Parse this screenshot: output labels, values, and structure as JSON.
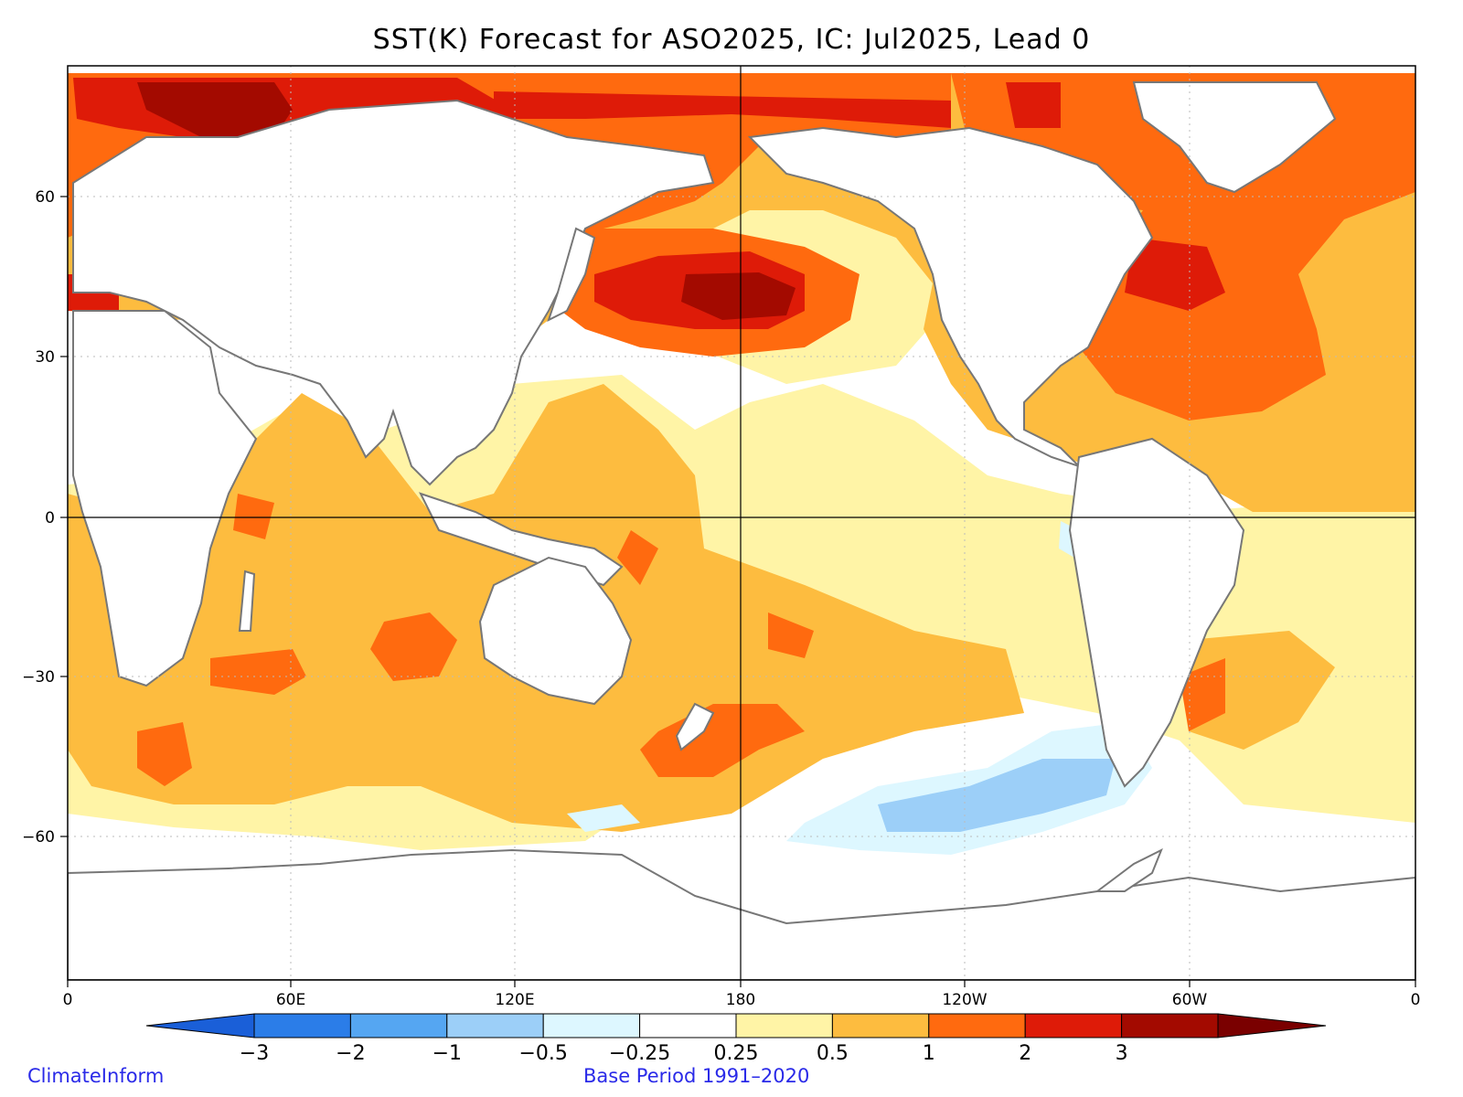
{
  "title": "SST(K) Forecast for ASO2025, IC: Jul2025, Lead 0",
  "credit": "ClimateInform",
  "base_period": "Base Period 1991–2020",
  "map": {
    "x_ticks": [
      "0",
      "60E",
      "120E",
      "180",
      "120W",
      "60W",
      "0"
    ],
    "y_ticks": [
      "60",
      "30",
      "0",
      "−30",
      "−60"
    ],
    "reference_lines": [
      "Equator",
      "180"
    ]
  },
  "colorbar": {
    "labels": [
      "−3",
      "−2",
      "−1",
      "−0.5",
      "−0.25",
      "0.25",
      "0.5",
      "1",
      "2",
      "3"
    ],
    "colors": [
      "#1a5fd8",
      "#2b7de8",
      "#55a6f2",
      "#9ccff8",
      "#ddf7ff",
      "#ffffff",
      "#fff4a6",
      "#fdbc3f",
      "#ff6a0f",
      "#de1b08",
      "#a30a00",
      "#7a0000"
    ]
  }
}
